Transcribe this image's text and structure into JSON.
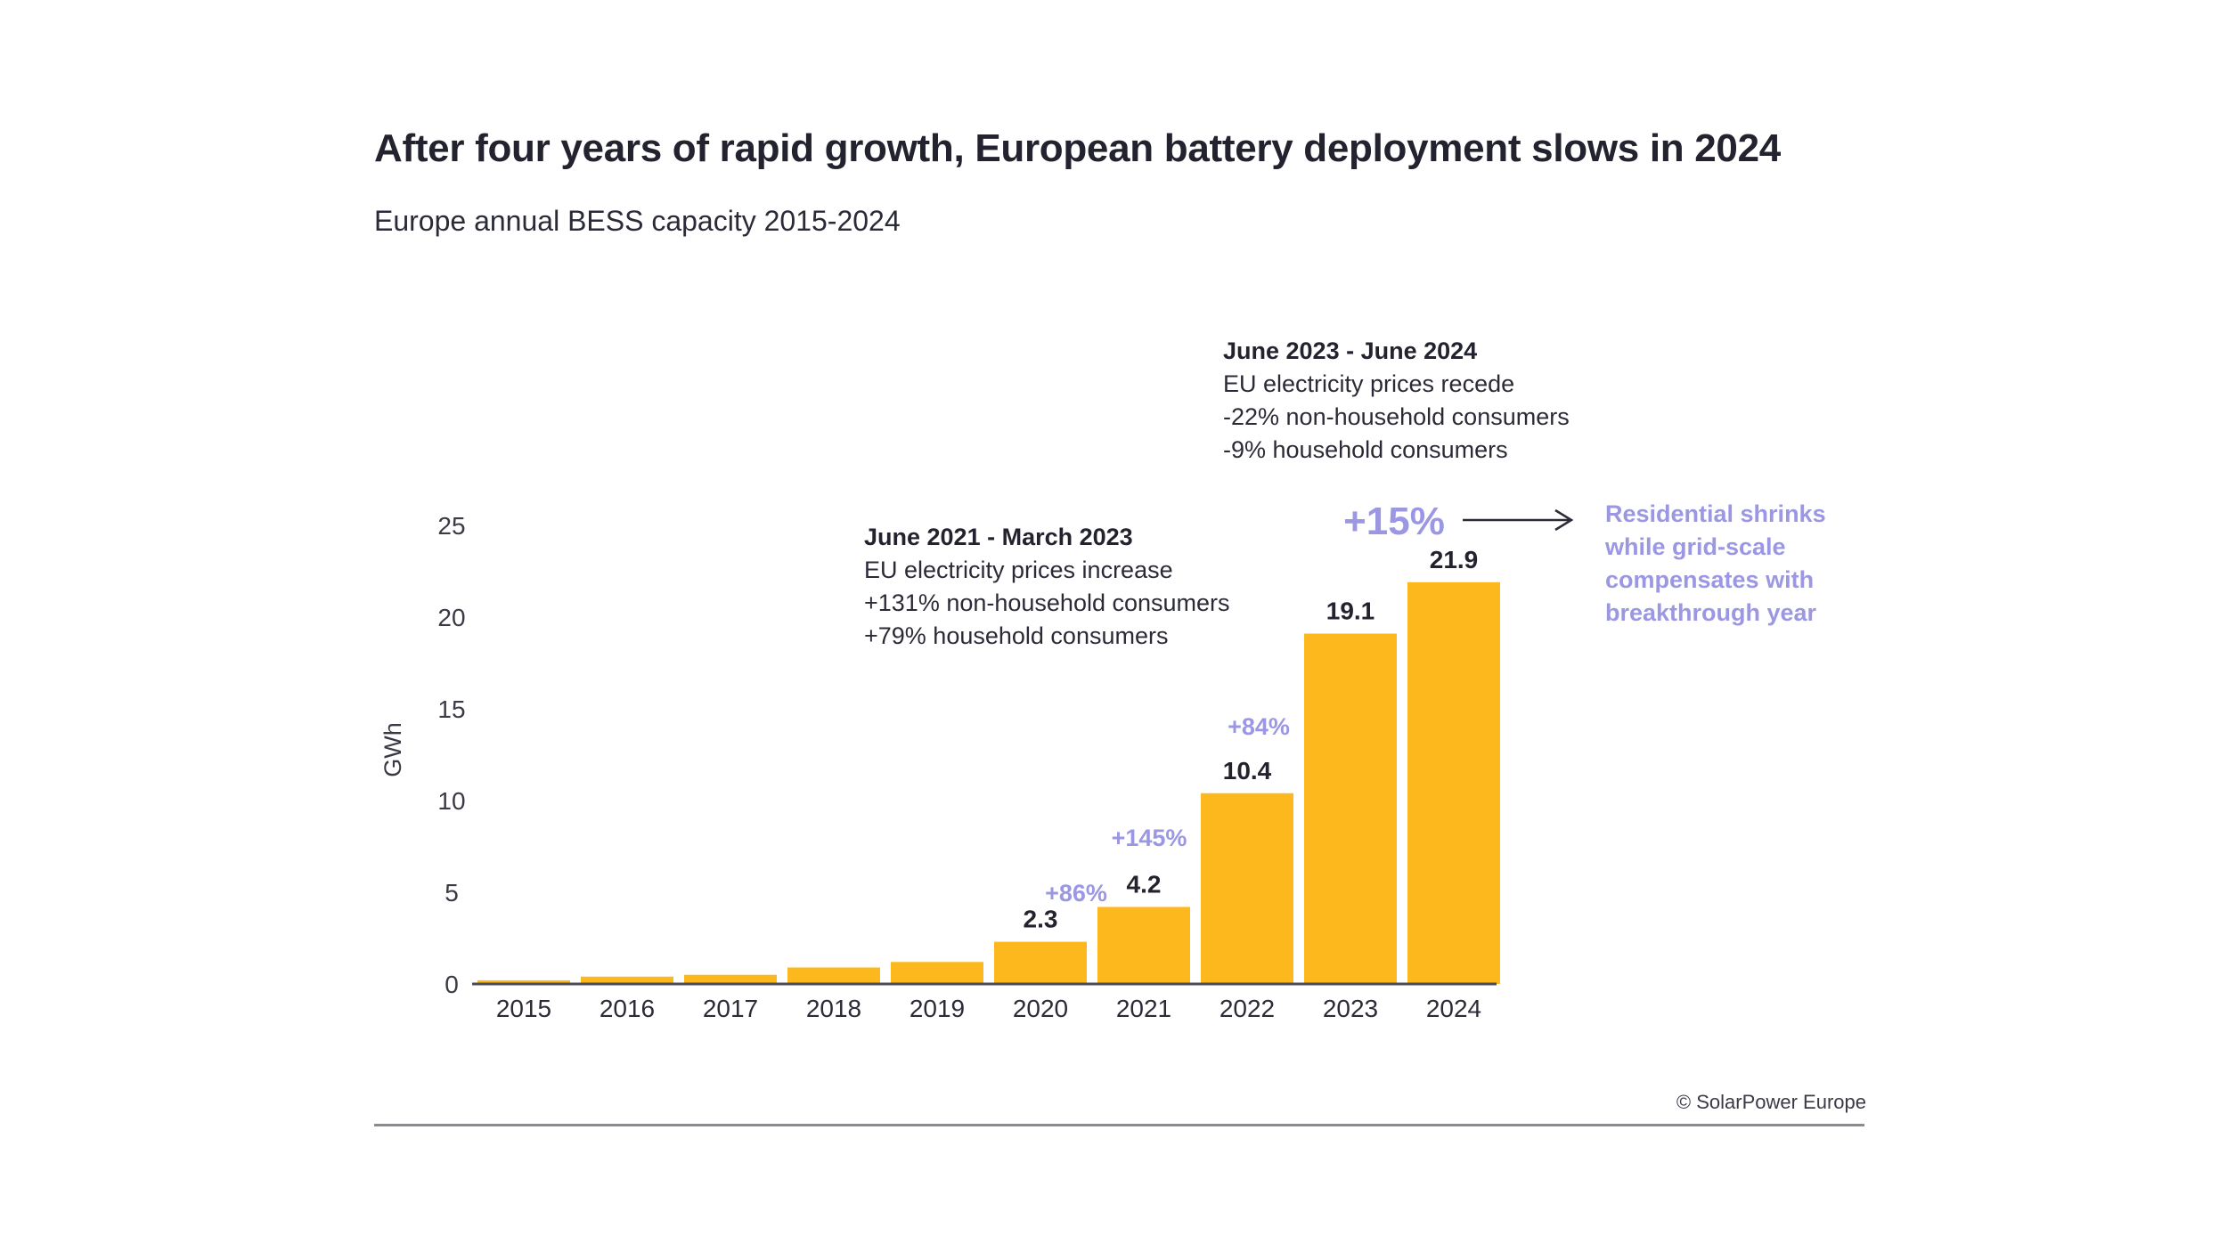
{
  "title": "After four years of rapid growth, European battery deployment slows in 2024",
  "subtitle": "Europe annual BESS capacity 2015-2024",
  "copyright": "© SolarPower Europe",
  "colors": {
    "bar": "#FDB81E",
    "accent": "#9B97E3",
    "text": "#1F1F33"
  },
  "chart_data": {
    "type": "bar",
    "categories": [
      "2015",
      "2016",
      "2017",
      "2018",
      "2019",
      "2020",
      "2021",
      "2022",
      "2023",
      "2024"
    ],
    "values": [
      0.2,
      0.4,
      0.5,
      0.9,
      1.2,
      2.3,
      4.2,
      10.4,
      19.1,
      21.9
    ],
    "value_labels": [
      "",
      "",
      "",
      "",
      "",
      "2.3",
      "4.2",
      "10.4",
      "19.1",
      "21.9"
    ],
    "growth_labels": [
      "",
      "",
      "",
      "",
      "",
      "+86%",
      "+145%",
      "+84%",
      "",
      "+15%"
    ],
    "ylabel": "GWh",
    "xlabel": "",
    "ylim": [
      0,
      25
    ],
    "yticks": [
      0,
      5,
      10,
      15,
      20,
      25
    ],
    "grid": false,
    "annotations": [
      {
        "heading": "June 2021 - March 2023",
        "lines": [
          "EU electricity prices increase",
          "+131% non-household consumers",
          "+79% household consumers"
        ]
      },
      {
        "heading": "June 2023 - June 2024",
        "lines": [
          "EU electricity prices recede",
          "-22% non-household consumers",
          "-9% household consumers"
        ]
      }
    ],
    "side_note": [
      "Residential shrinks",
      "while grid-scale",
      "compensates with",
      "breakthrough year"
    ]
  }
}
